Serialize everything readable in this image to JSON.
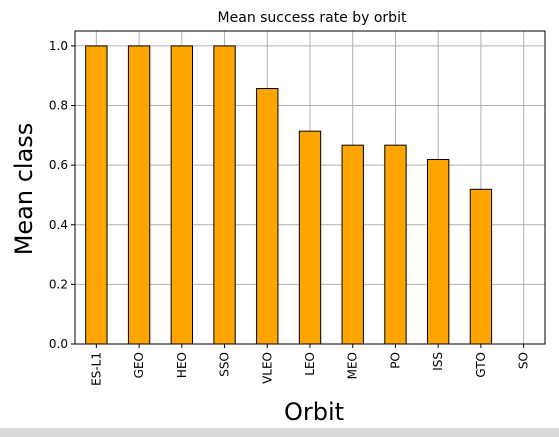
{
  "chart_data": {
    "type": "bar",
    "title": "Mean success rate by orbit",
    "xlabel": "Orbit",
    "ylabel": "Mean class",
    "categories": [
      "ES-L1",
      "GEO",
      "HEO",
      "SSO",
      "VLEO",
      "LEO",
      "MEO",
      "PO",
      "ISS",
      "GTO",
      "SO"
    ],
    "values": [
      1.0,
      1.0,
      1.0,
      1.0,
      0.857,
      0.714,
      0.667,
      0.667,
      0.619,
      0.519,
      0.0
    ],
    "ylim": [
      0,
      1.05
    ],
    "yticks": [
      "0.0",
      "0.2",
      "0.4",
      "0.6",
      "0.8",
      "1.0"
    ],
    "grid": true,
    "colors": {
      "bar": "#ffa500",
      "bar_edge": "#000000",
      "grid": "#b0b0b0"
    }
  }
}
